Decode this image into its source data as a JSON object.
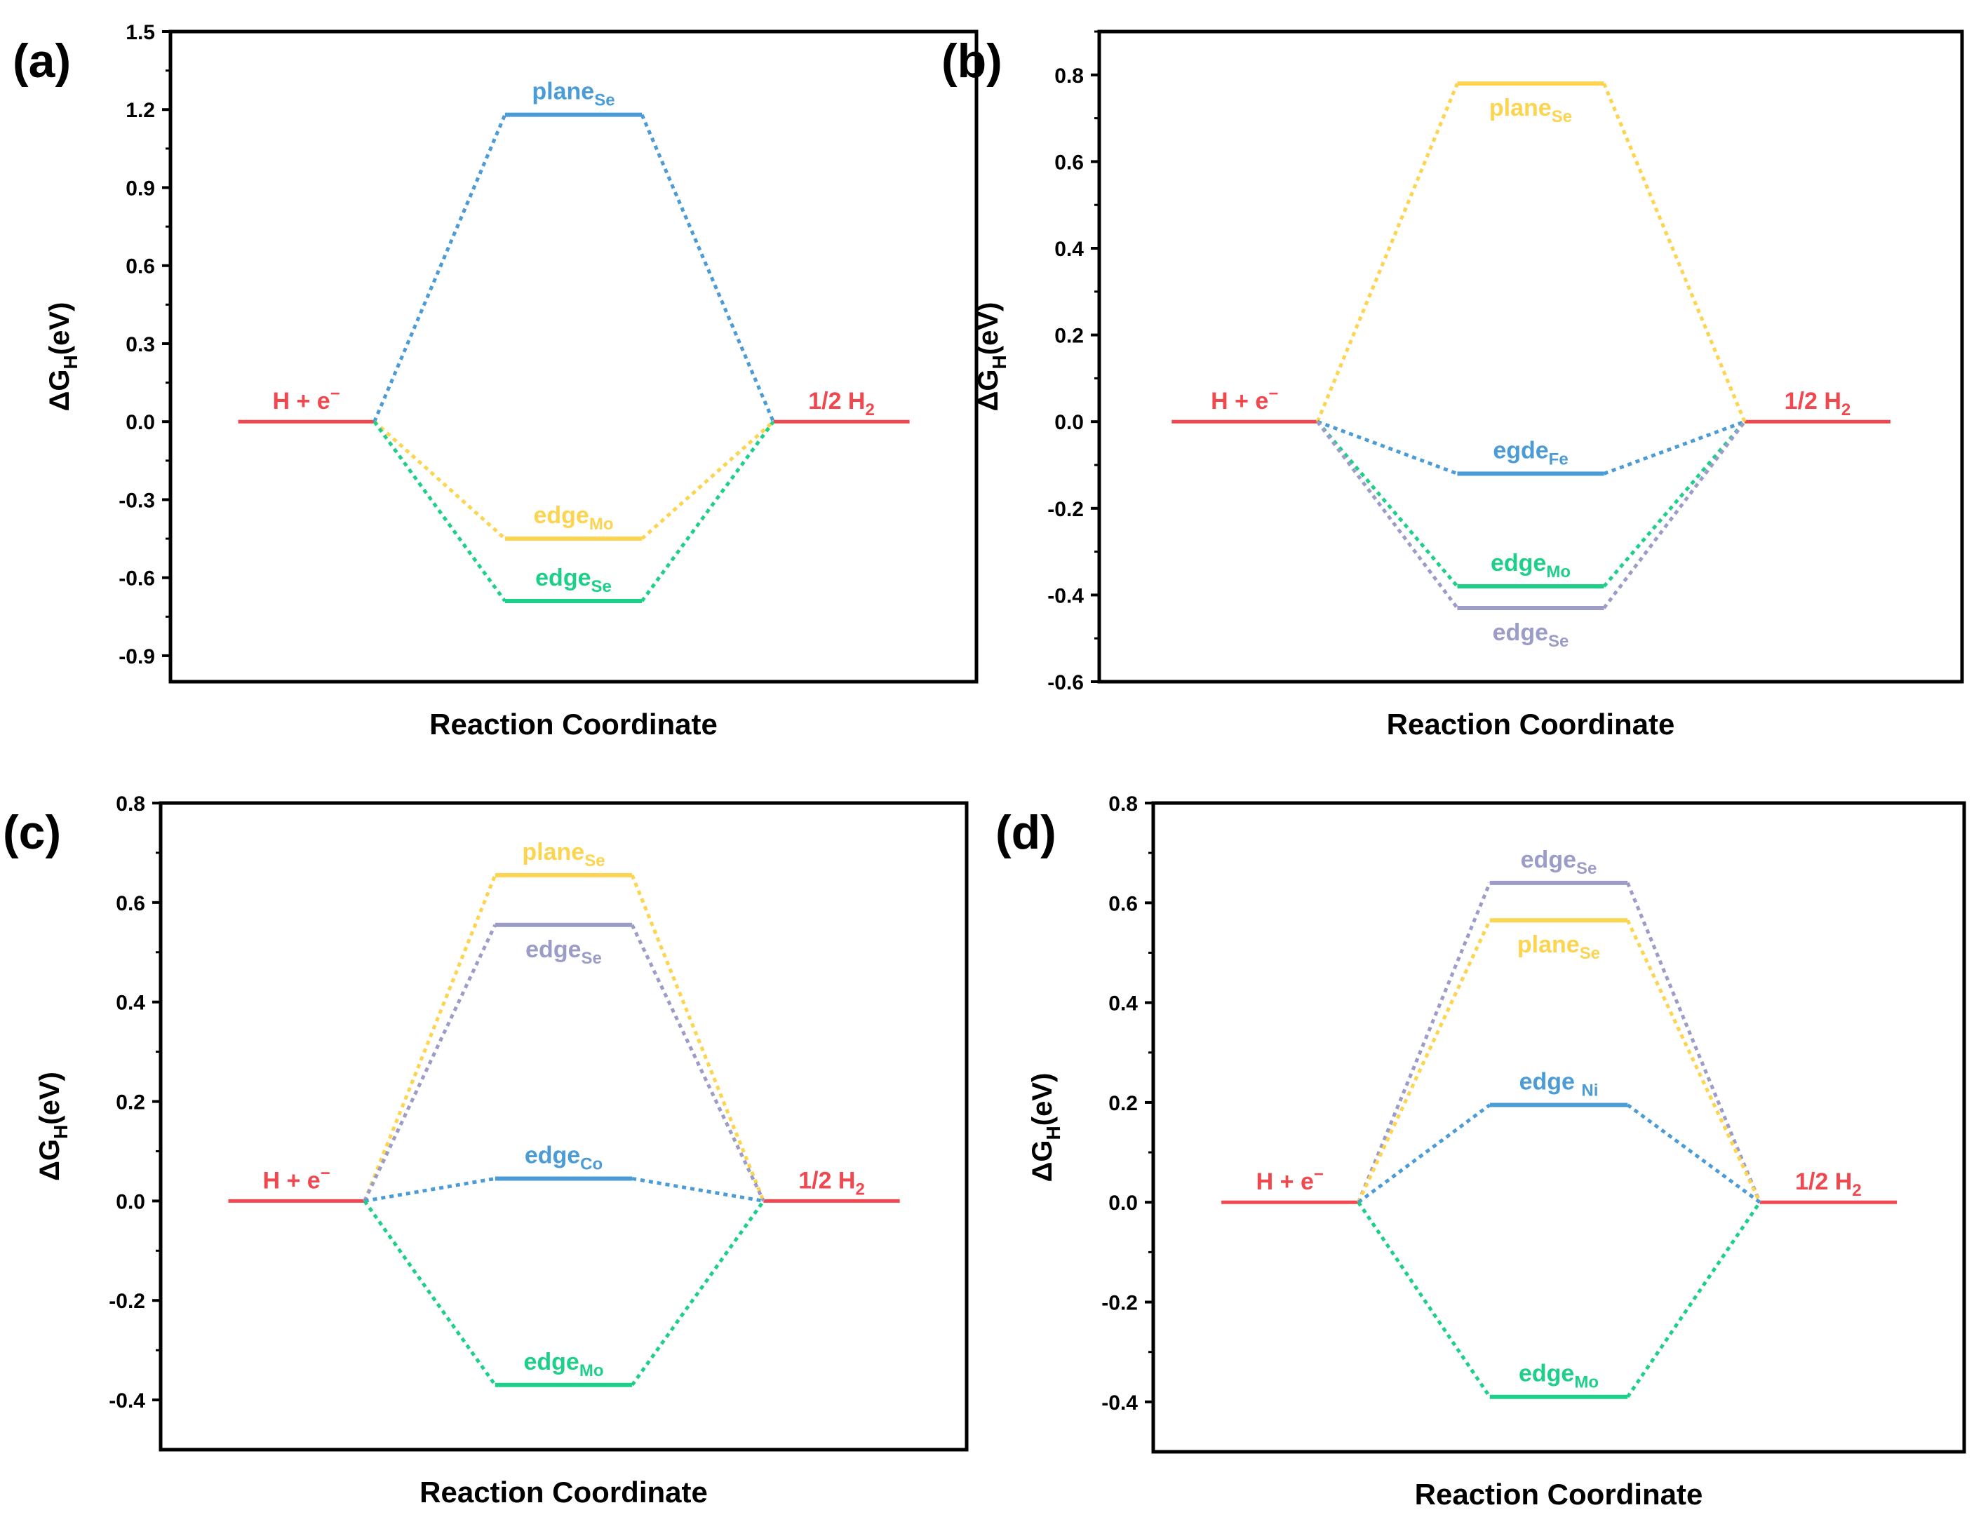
{
  "colors": {
    "red": "#f0484e",
    "blue": "#4a9bd6",
    "yellow": "#fcd44f",
    "green": "#1ecf8a",
    "purple": "#9c9cc8",
    "axis": "#000000"
  },
  "chart_data": [
    {
      "type": "line",
      "panel_label": "(a)",
      "ylabel_main": "ΔG",
      "ylabel_sub": "H",
      "ylabel_tail": "(eV)",
      "xlabel": "Reaction Coordinate",
      "ylim": [
        -1.0,
        1.5
      ],
      "yticks": [
        -0.9,
        -0.6,
        -0.3,
        0.0,
        0.3,
        0.6,
        0.9,
        1.2,
        1.5
      ],
      "ytick_labels": [
        "-0.9",
        "-0.6",
        "-0.3",
        "0.0",
        "0.3",
        "0.6",
        "0.9",
        "1.2",
        "1.5"
      ],
      "reference": {
        "start_label": "H + e",
        "start_sup": "−",
        "end_label": "1/2 H",
        "end_sub": "2",
        "value": 0.0,
        "color": "red"
      },
      "series": [
        {
          "name": "plane",
          "sub": "Se",
          "value": 1.18,
          "color": "blue",
          "label_pos": "above"
        },
        {
          "name": "edge",
          "sub": "Mo",
          "value": -0.45,
          "color": "yellow",
          "label_pos": "above"
        },
        {
          "name": "edge",
          "sub": "Se",
          "value": -0.69,
          "color": "green",
          "label_pos": "above"
        }
      ]
    },
    {
      "type": "line",
      "panel_label": "(b)",
      "ylabel_main": "ΔG",
      "ylabel_sub": "H",
      "ylabel_tail": "(eV)",
      "xlabel": "Reaction Coordinate",
      "ylim": [
        -0.6,
        0.9
      ],
      "yticks": [
        -0.6,
        -0.4,
        -0.2,
        0.0,
        0.2,
        0.4,
        0.6,
        0.8
      ],
      "ytick_labels": [
        "-0.6",
        "-0.4",
        "-0.2",
        "0.0",
        "0.2",
        "0.4",
        "0.6",
        "0.8"
      ],
      "reference": {
        "start_label": "H + e",
        "start_sup": "−",
        "end_label": "1/2 H",
        "end_sub": "2",
        "value": 0.0,
        "color": "red"
      },
      "series": [
        {
          "name": "plane",
          "sub": "Se",
          "value": 0.78,
          "color": "yellow",
          "label_pos": "below"
        },
        {
          "name": "egde",
          "sub": "Fe",
          "value": -0.12,
          "color": "blue",
          "label_pos": "above"
        },
        {
          "name": "edge",
          "sub": "Mo",
          "value": -0.38,
          "color": "green",
          "label_pos": "above"
        },
        {
          "name": "edge",
          "sub": "Se",
          "value": -0.43,
          "color": "purple",
          "label_pos": "below"
        }
      ]
    },
    {
      "type": "line",
      "panel_label": "(c)",
      "ylabel_main": "ΔG",
      "ylabel_sub": "H",
      "ylabel_tail": "(eV)",
      "xlabel": "Reaction Coordinate",
      "ylim": [
        -0.5,
        0.8
      ],
      "yticks": [
        -0.4,
        -0.2,
        0.0,
        0.2,
        0.4,
        0.6,
        0.8
      ],
      "ytick_labels": [
        "-0.4",
        "-0.2",
        "0.0",
        "0.2",
        "0.4",
        "0.6",
        "0.8"
      ],
      "reference": {
        "start_label": "H + e",
        "start_sup": "−",
        "end_label": "1/2 H",
        "end_sub": "2",
        "value": 0.0,
        "color": "red"
      },
      "series": [
        {
          "name": "plane",
          "sub": "Se",
          "value": 0.655,
          "color": "yellow",
          "label_pos": "above"
        },
        {
          "name": "edge",
          "sub": "Se",
          "value": 0.555,
          "color": "purple",
          "label_pos": "below"
        },
        {
          "name": "edge",
          "sub": "Co",
          "value": 0.045,
          "color": "blue",
          "label_pos": "above"
        },
        {
          "name": "edge",
          "sub": "Mo",
          "value": -0.37,
          "color": "green",
          "label_pos": "above"
        }
      ]
    },
    {
      "type": "line",
      "panel_label": "(d)",
      "ylabel_main": "ΔG",
      "ylabel_sub": "H",
      "ylabel_tail": "(eV)",
      "xlabel": "Reaction Coordinate",
      "ylim": [
        -0.5,
        0.8
      ],
      "yticks": [
        -0.4,
        -0.2,
        0.0,
        0.2,
        0.4,
        0.6,
        0.8
      ],
      "ytick_labels": [
        "-0.4",
        "-0.2",
        "0.0",
        "0.2",
        "0.4",
        "0.6",
        "0.8"
      ],
      "reference": {
        "start_label": "H + e",
        "start_sup": "−",
        "end_label": "1/2 H",
        "end_sub": "2",
        "value": 0.0,
        "color": "red"
      },
      "series": [
        {
          "name": "edge",
          "sub": "Se",
          "value": 0.64,
          "color": "purple",
          "label_pos": "above"
        },
        {
          "name": "plane",
          "sub": "Se",
          "value": 0.565,
          "color": "yellow",
          "label_pos": "below"
        },
        {
          "name": "edge ",
          "sub": "Ni",
          "value": 0.195,
          "color": "blue",
          "label_pos": "above"
        },
        {
          "name": "edge",
          "sub": "Mo",
          "value": -0.39,
          "color": "green",
          "label_pos": "above"
        }
      ]
    }
  ]
}
